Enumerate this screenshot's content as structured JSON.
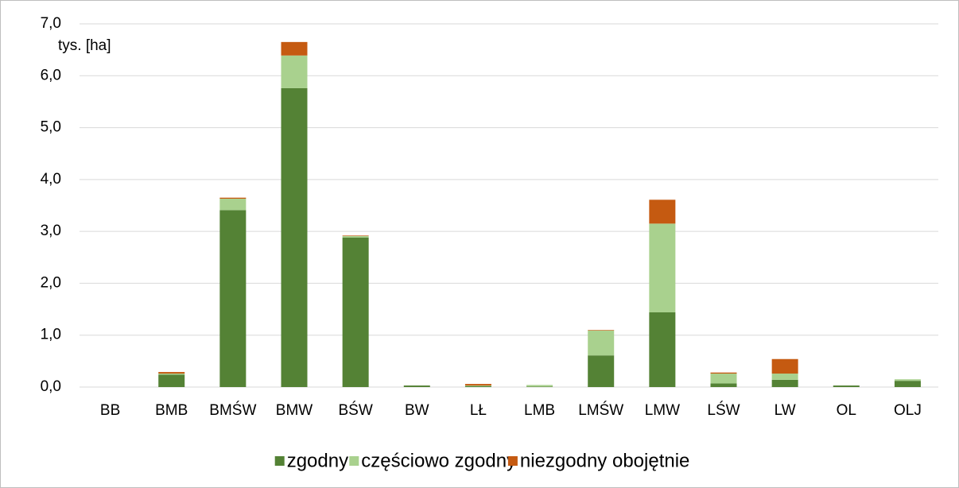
{
  "chart_data": {
    "type": "stacked_bar",
    "y_label": "tys. [ha]",
    "categories": [
      "BB",
      "BMB",
      "BMŚW",
      "BMW",
      "BŚW",
      "BW",
      "LŁ",
      "LMB",
      "LMŚW",
      "LMW",
      "LŚW",
      "LW",
      "OL",
      "OLJ"
    ],
    "series": [
      {
        "name": "zgodny",
        "color": "#548235",
        "values": [
          0,
          0.24,
          3.41,
          5.76,
          2.88,
          0.03,
          0.02,
          0.01,
          0.61,
          1.44,
          0.07,
          0.14,
          0.03,
          0.12
        ]
      },
      {
        "name": "częściowo zgodny",
        "color": "#a9d18e",
        "values": [
          0,
          0.02,
          0.22,
          0.63,
          0.03,
          0,
          0.01,
          0.03,
          0.48,
          1.71,
          0.19,
          0.12,
          0,
          0.03
        ]
      },
      {
        "name": "niezgodny obojętnie",
        "color": "#c55a11",
        "values": [
          0,
          0.03,
          0.02,
          0.26,
          0.01,
          0,
          0.03,
          0,
          0.01,
          0.46,
          0.02,
          0.28,
          0,
          0
        ]
      }
    ],
    "ylim": [
      0,
      7
    ],
    "yticks": [
      {
        "value": 0,
        "label": "0,0"
      },
      {
        "value": 1,
        "label": "1,0"
      },
      {
        "value": 2,
        "label": "2,0"
      },
      {
        "value": 3,
        "label": "3,0"
      },
      {
        "value": 4,
        "label": "4,0"
      },
      {
        "value": 5,
        "label": "5,0"
      },
      {
        "value": 6,
        "label": "6,0"
      },
      {
        "value": 7,
        "label": "7,0"
      }
    ],
    "grid": true
  }
}
